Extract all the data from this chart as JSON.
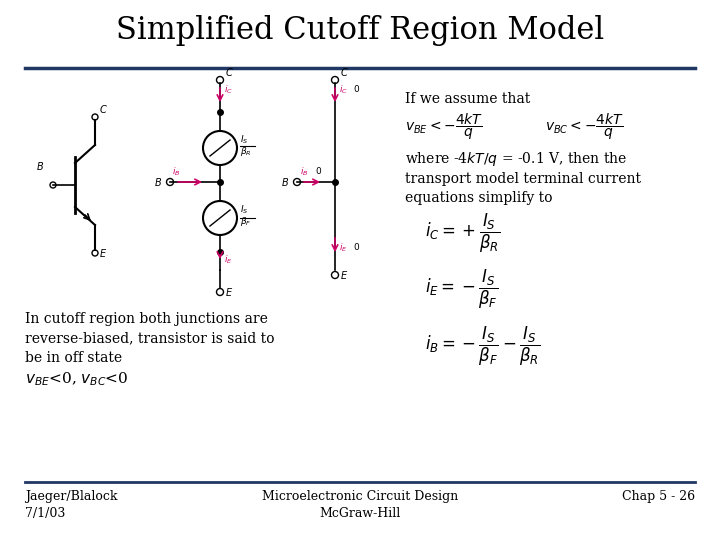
{
  "title": "Simplified Cutoff Region Model",
  "title_fontsize": 22,
  "title_font": "serif",
  "bg_color": "#ffffff",
  "divider_color": "#1f3864",
  "text_left_1": "In cutoff region both junctions are\nreverse-biased, transistor is said to\nbe in off state",
  "right_text_1": "If we assume that",
  "right_text_2": "where -4$kT/q$ = -0.1 V, then the\ntransport model terminal current\nequations simplify to",
  "footer_left": "Jaeger/Blalock\n7/1/03",
  "footer_center": "Microelectronic Circuit Design\nMcGraw-Hill",
  "footer_right": "Chap 5 - 26",
  "footer_fontsize": 9,
  "body_fontsize": 10,
  "eq_fontsize": 11,
  "dark_blue": "#1f3864",
  "magenta": "#cc0066",
  "black": "#000000",
  "gray": "#555555"
}
